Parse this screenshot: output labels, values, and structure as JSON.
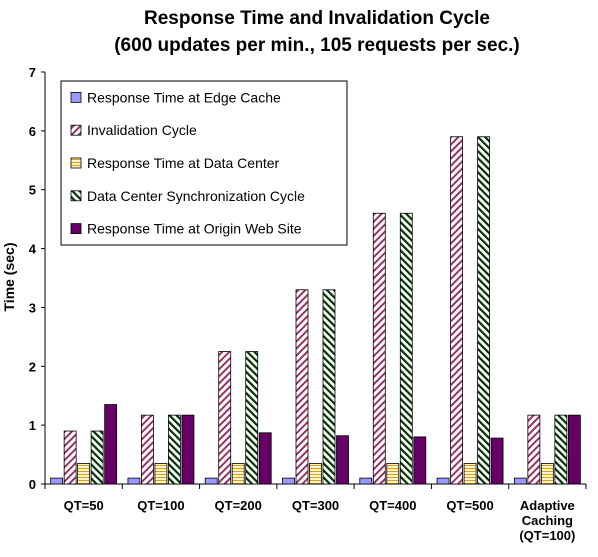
{
  "chart_data": {
    "type": "bar",
    "title": "Response Time and Invalidation Cycle",
    "subtitle": "(600 updates per min., 105 requests per sec.)",
    "ylabel": "Time (sec)",
    "xlabel": "",
    "ylim": [
      0,
      7
    ],
    "yticks": [
      "0",
      "1",
      "2",
      "3",
      "4",
      "5",
      "6",
      "7"
    ],
    "grid": false,
    "legend_position": "top-left",
    "categories": [
      [
        "QT=50"
      ],
      [
        "QT=100"
      ],
      [
        "QT=200"
      ],
      [
        "QT=300"
      ],
      [
        "QT=400"
      ],
      [
        "QT=500"
      ],
      [
        "Adaptive",
        "Caching",
        "(QT=100)"
      ]
    ],
    "series": [
      {
        "name": "Response Time at Edge Cache",
        "pattern": "solid",
        "color": "#9999ff",
        "values": [
          0.1,
          0.1,
          0.1,
          0.1,
          0.1,
          0.1,
          0.1
        ]
      },
      {
        "name": "Invalidation Cycle",
        "pattern": "diag-up",
        "color": "#993366",
        "values": [
          0.9,
          1.17,
          2.25,
          3.3,
          4.6,
          5.9,
          1.17
        ]
      },
      {
        "name": "Response Time at Data Center",
        "pattern": "horizontal",
        "color": "#d4a020",
        "values": [
          0.35,
          0.35,
          0.35,
          0.35,
          0.35,
          0.35,
          0.35
        ]
      },
      {
        "name": "Data Center Synchronization Cycle",
        "pattern": "diag-down",
        "color": "#003300",
        "values": [
          0.9,
          1.17,
          2.25,
          3.3,
          4.6,
          5.9,
          1.17
        ]
      },
      {
        "name": "Response Time at Origin Web Site",
        "pattern": "solid",
        "color": "#660066",
        "values": [
          1.35,
          1.17,
          0.87,
          0.82,
          0.8,
          0.78,
          1.17
        ]
      }
    ]
  }
}
